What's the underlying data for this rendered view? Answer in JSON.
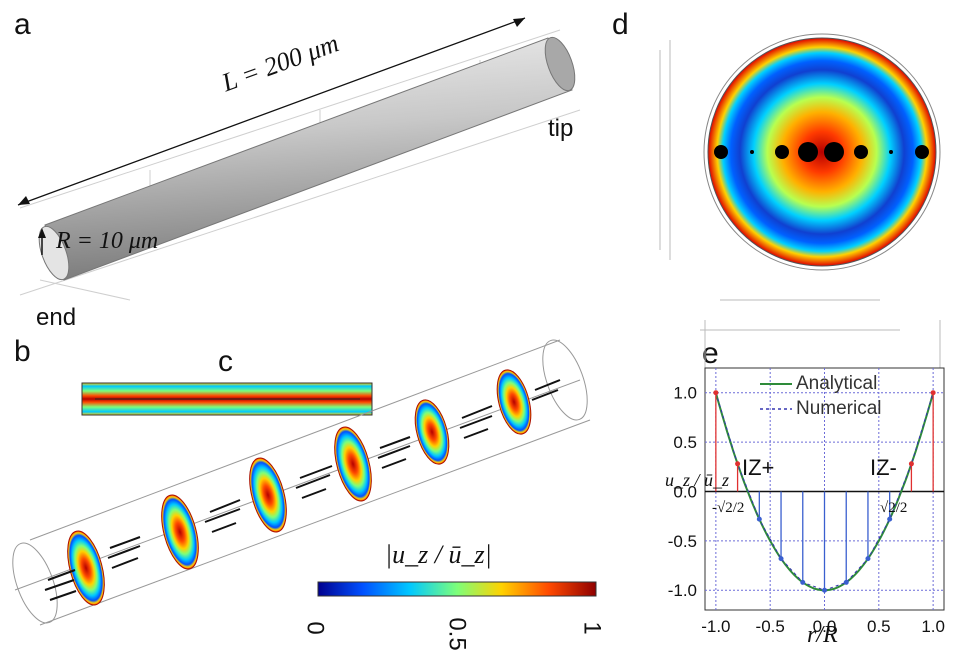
{
  "panels": {
    "a": "a",
    "b": "b",
    "c": "c",
    "d": "d",
    "e": "e"
  },
  "panel_a": {
    "length_label": "L = 200 μm",
    "radius_label": "R = 10 μm",
    "tip_label": "tip",
    "end_label": "end"
  },
  "colorbar": {
    "title": "|u_z / ū_z|",
    "ticks": [
      "0",
      "0.5",
      "1"
    ]
  },
  "colors": {
    "jet": [
      "#00008f",
      "#0050ff",
      "#00c8ff",
      "#7dff7a",
      "#ffd200",
      "#ff4a00",
      "#b40000"
    ],
    "analytical": "#2e8b3a",
    "numerical": "#3535b0",
    "arrows_red": "#e03030",
    "arrows_blue": "#3a5fcf"
  },
  "chart_data": {
    "type": "line",
    "xlabel": "r/R",
    "ylabel": "u_z / ū_z",
    "xlim": [
      -1.1,
      1.1
    ],
    "ylim": [
      -1.2,
      1.25
    ],
    "xticks": [
      "-1.0",
      "-0.5",
      "0.0",
      "0.5",
      "1.0"
    ],
    "yticks": [
      "1.0",
      "0.5",
      "0.0",
      "-0.5",
      "-1.0"
    ],
    "grid": true,
    "legend_position": "top-right",
    "series": [
      {
        "name": "Analytical",
        "x": [
          -1.0,
          -0.8,
          -0.6,
          -0.4,
          -0.2,
          0.0,
          0.2,
          0.4,
          0.6,
          0.8,
          1.0
        ],
        "y": [
          1.0,
          0.28,
          -0.28,
          -0.68,
          -0.92,
          -1.0,
          -0.92,
          -0.68,
          -0.28,
          0.28,
          1.0
        ]
      },
      {
        "name": "Numerical",
        "x": [
          -1.0,
          -0.8,
          -0.6,
          -0.4,
          -0.2,
          0.0,
          0.2,
          0.4,
          0.6,
          0.8,
          1.0
        ],
        "y": [
          1.0,
          0.28,
          -0.28,
          -0.68,
          -0.92,
          -1.0,
          -0.92,
          -0.68,
          -0.28,
          0.28,
          1.0
        ]
      }
    ],
    "annotations": [
      "IZ+",
      "IZ-",
      "-√2/2",
      "√2/2"
    ]
  }
}
